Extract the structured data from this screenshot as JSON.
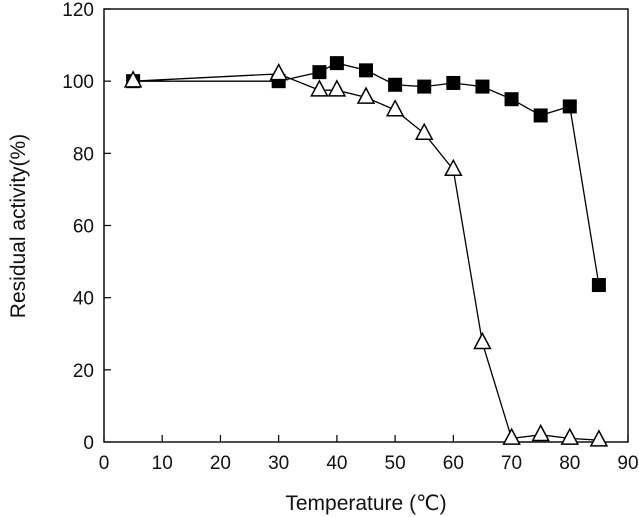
{
  "chart_data": {
    "type": "line",
    "title": "",
    "xlabel": "Temperature (℃)",
    "ylabel": "Residual activity(%)",
    "xlim": [
      0,
      90
    ],
    "ylim": [
      0,
      120
    ],
    "xticks": [
      0,
      10,
      20,
      30,
      40,
      50,
      60,
      70,
      80,
      90
    ],
    "yticks": [
      0,
      20,
      40,
      60,
      80,
      100,
      120
    ],
    "grid": false,
    "legend": "none",
    "series": [
      {
        "marker": "filled-square",
        "color": "#000000",
        "x": [
          5,
          30,
          37,
          40,
          45,
          50,
          55,
          60,
          65,
          70,
          75,
          80,
          85
        ],
        "y": [
          100,
          100,
          102.5,
          105,
          103,
          99,
          98.5,
          99.5,
          98.5,
          95,
          90.5,
          93,
          43.5
        ]
      },
      {
        "marker": "open-triangle",
        "color": "#000000",
        "x": [
          5,
          30,
          37,
          40,
          45,
          50,
          55,
          60,
          65,
          70,
          75,
          80,
          85
        ],
        "y": [
          100,
          102,
          97.5,
          97.5,
          95.5,
          92,
          85.5,
          75.5,
          27.5,
          1,
          2,
          1,
          0.5
        ]
      }
    ]
  }
}
